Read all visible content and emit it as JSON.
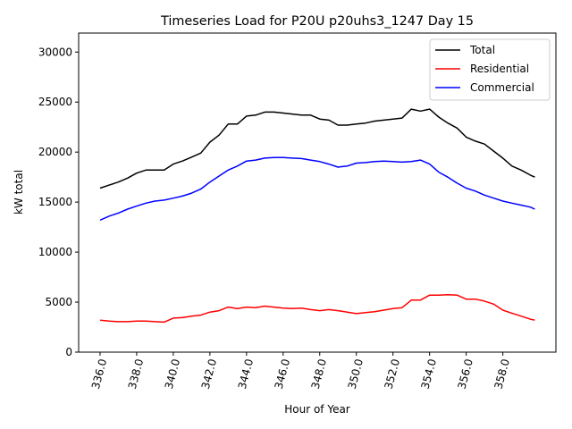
{
  "chart_data": {
    "type": "line",
    "title": "Timeseries Load for P20U p20uhs3_1247  Day 15",
    "xlabel": "Hour of Year",
    "ylabel": "kW total",
    "xlim": [
      334.83,
      360.9
    ],
    "ylim": [
      0,
      31900
    ],
    "xticks": [
      336,
      338,
      340,
      342,
      344,
      346,
      348,
      350,
      352,
      354,
      356,
      358
    ],
    "xtick_labels": [
      "336.0",
      "338.0",
      "340.0",
      "342.0",
      "344.0",
      "346.0",
      "348.0",
      "350.0",
      "352.0",
      "354.0",
      "356.0",
      "358.0"
    ],
    "yticks": [
      0,
      5000,
      10000,
      15000,
      20000,
      25000,
      30000
    ],
    "ytick_labels": [
      "0",
      "5000",
      "10000",
      "15000",
      "20000",
      "25000",
      "30000"
    ],
    "grid": false,
    "legend_position": "top-right",
    "x": [
      336,
      336.5,
      337,
      337.5,
      338,
      338.5,
      339,
      339.5,
      340,
      340.5,
      341,
      341.5,
      342,
      342.5,
      343,
      343.5,
      344,
      344.5,
      345,
      345.5,
      346,
      346.5,
      347,
      347.5,
      348,
      348.5,
      349,
      349.5,
      350,
      350.5,
      351,
      351.5,
      352,
      352.5,
      353,
      353.5,
      354,
      354.5,
      355,
      355.5,
      356,
      356.5,
      357,
      357.5,
      358,
      358.5,
      359,
      359.5,
      359.75
    ],
    "series": [
      {
        "name": "Total",
        "color": "#000000",
        "values": [
          16400,
          16700,
          17000,
          17400,
          17900,
          18200,
          18200,
          18200,
          18800,
          19100,
          19500,
          19900,
          21000,
          21700,
          22800,
          22800,
          23600,
          23700,
          24000,
          24000,
          23900,
          23800,
          23700,
          23700,
          23300,
          23200,
          22700,
          22700,
          22800,
          22900,
          23100,
          23200,
          23300,
          23400,
          24300,
          24100,
          24300,
          23500,
          22900,
          22400,
          21500,
          21100,
          20800,
          20100,
          19400,
          18600,
          18200,
          17700,
          17500
        ]
      },
      {
        "name": "Residential",
        "color": "#ff0000",
        "values": [
          3200,
          3100,
          3050,
          3050,
          3100,
          3100,
          3050,
          3000,
          3400,
          3450,
          3600,
          3700,
          4000,
          4150,
          4500,
          4350,
          4500,
          4450,
          4600,
          4500,
          4400,
          4350,
          4400,
          4250,
          4150,
          4250,
          4150,
          4000,
          3850,
          3950,
          4050,
          4200,
          4350,
          4450,
          5200,
          5200,
          5700,
          5700,
          5750,
          5700,
          5300,
          5300,
          5100,
          4800,
          4200,
          3900,
          3600,
          3300,
          3200
        ]
      },
      {
        "name": "Commercial",
        "color": "#0000ff",
        "values": [
          13200,
          13600,
          13900,
          14300,
          14600,
          14900,
          15100,
          15200,
          15400,
          15600,
          15900,
          16300,
          17000,
          17600,
          18200,
          18600,
          19100,
          19200,
          19400,
          19450,
          19450,
          19400,
          19350,
          19200,
          19050,
          18800,
          18500,
          18600,
          18900,
          18950,
          19050,
          19100,
          19050,
          19000,
          19050,
          19200,
          18800,
          18000,
          17500,
          16900,
          16400,
          16100,
          15700,
          15400,
          15100,
          14900,
          14700,
          14500,
          14300
        ]
      }
    ]
  }
}
